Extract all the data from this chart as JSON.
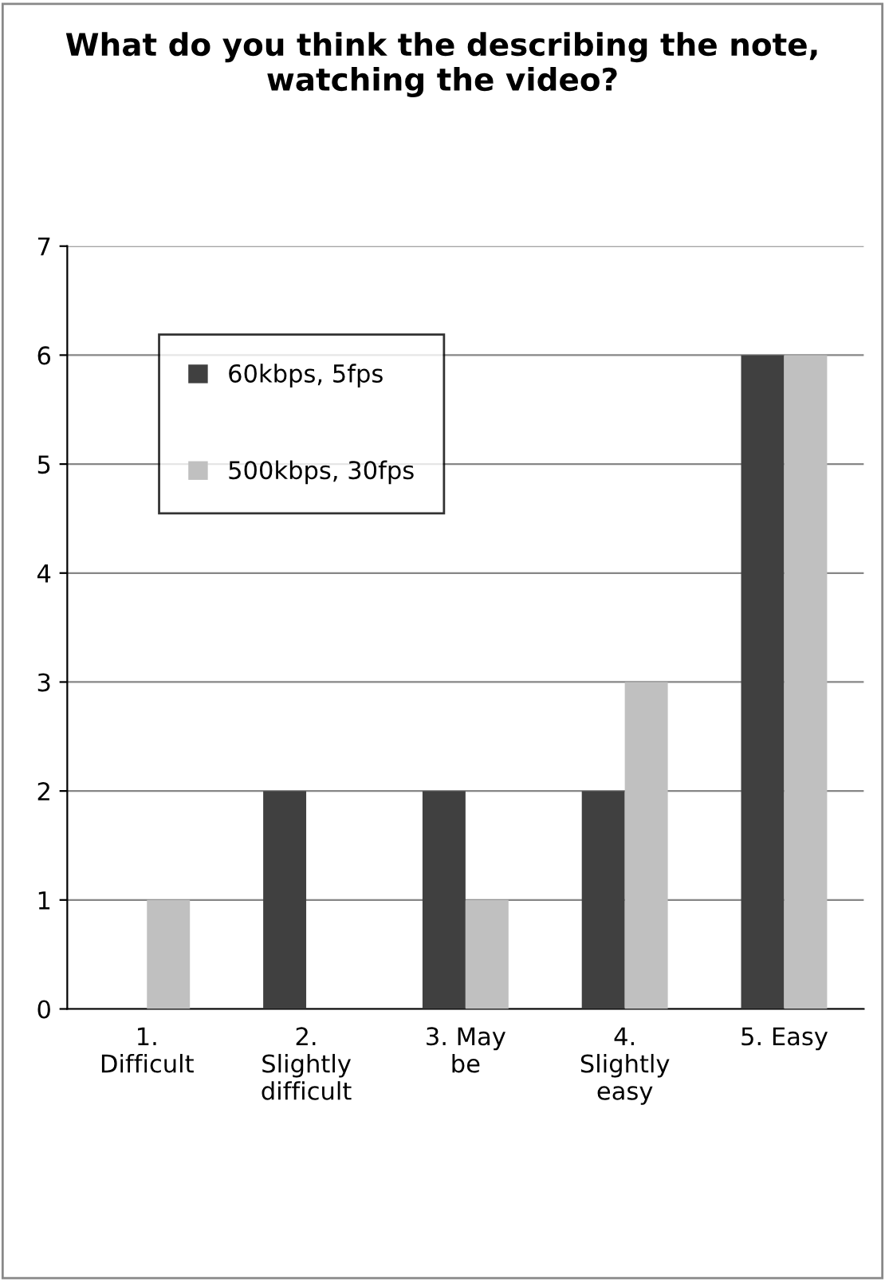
{
  "chart_data": {
    "type": "bar",
    "title": "What do you think the describing the note, watching the video?",
    "categories": [
      "1.\nDifficult",
      "2.\nSlightly\ndifficult",
      "3. May\nbe",
      "4.\nSlightly\neasy",
      "5. Easy"
    ],
    "series": [
      {
        "name": "60kbps, 5fps",
        "color": "#404040",
        "values": [
          0,
          2,
          2,
          2,
          6
        ]
      },
      {
        "name": "500kbps, 30fps",
        "color": "#c0c0c0",
        "values": [
          1,
          0,
          1,
          3,
          6
        ]
      }
    ],
    "ylim": [
      0,
      7
    ],
    "yticks": [
      0,
      1,
      2,
      3,
      4,
      5,
      6,
      7
    ],
    "grid": "y",
    "legend": "top left"
  }
}
